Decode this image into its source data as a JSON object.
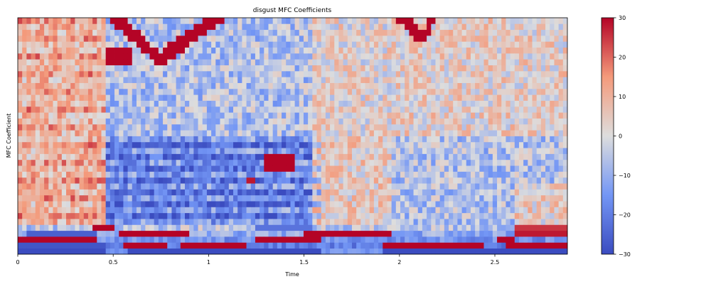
{
  "chart_data": {
    "type": "heatmap",
    "title": "disgust MFC Coefficients",
    "xlabel": "Time",
    "ylabel": "MFC Coefficient",
    "x_range": [
      0,
      2.88
    ],
    "x_ticks": [
      0,
      0.5,
      1,
      1.5,
      2,
      2.5
    ],
    "x_tick_labels": [
      "0",
      "0.5",
      "1",
      "1.5",
      "2",
      "2.5"
    ],
    "n_coefficients": 40,
    "n_frames": 125,
    "colormap": "coolwarm",
    "colorbar": {
      "vmin": -30,
      "vmax": 30,
      "ticks": [
        30,
        20,
        10,
        0,
        -10,
        -20,
        -30
      ],
      "tick_labels": [
        "30",
        "20",
        "10",
        "0",
        "−10",
        "−20",
        "−30"
      ]
    },
    "colors": {
      "low": "#3b4cc0",
      "mid": "#dddddd",
      "high": "#b40426"
    }
  }
}
